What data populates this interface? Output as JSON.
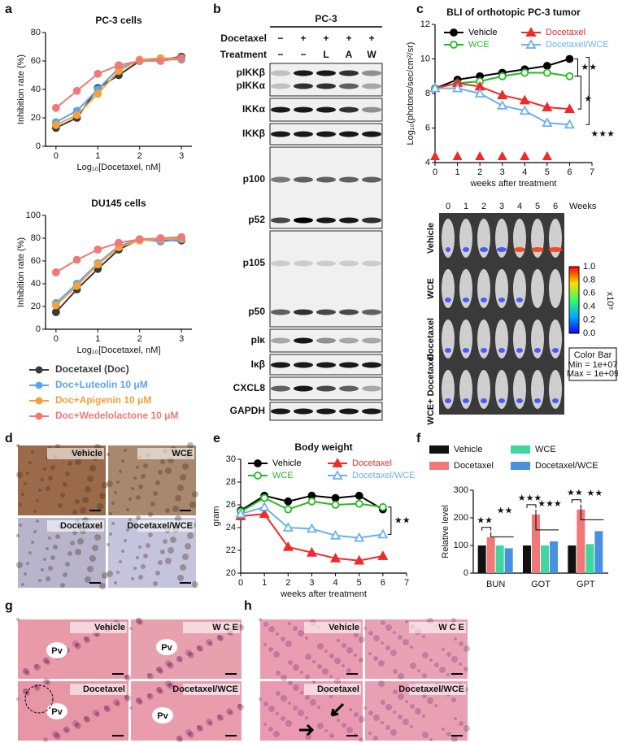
{
  "panel_letters": [
    "a",
    "b",
    "c",
    "d",
    "e",
    "f",
    "g",
    "h"
  ],
  "legend_a": [
    {
      "name": "Docetaxel (Doc)",
      "color": "#3a3a3a"
    },
    {
      "name": "Doc+Luteolin 10 μM",
      "color": "#5aa5e8"
    },
    {
      "name": "Doc+Apigenin 10 μM",
      "color": "#f5a03a"
    },
    {
      "name": "Doc+Wedelolactone 10 μM",
      "color": "#f07878"
    }
  ],
  "chart_data": [
    {
      "type": "line",
      "title": "PC-3 cells",
      "xlabel": "Log₁₀[Docetaxel, nM]",
      "ylabel": "Inhibition rate (%)",
      "x": [
        0,
        0.5,
        1,
        1.5,
        2,
        2.5,
        3
      ],
      "xlim": [
        -0.25,
        3.25
      ],
      "xticks": [
        0,
        1,
        2,
        3
      ],
      "ylim": [
        0,
        80
      ],
      "yticks": [
        0,
        20,
        40,
        60,
        80
      ],
      "series": [
        {
          "color": "#3a3a3a",
          "values": [
            13,
            20,
            41,
            50,
            60,
            61,
            63
          ]
        },
        {
          "color": "#5aa5e8",
          "values": [
            17,
            25,
            40,
            55,
            60,
            61,
            61
          ]
        },
        {
          "color": "#f5a03a",
          "values": [
            15,
            22,
            37,
            53,
            61,
            62,
            62
          ]
        },
        {
          "color": "#f07878",
          "values": [
            27,
            39,
            51,
            57,
            60,
            60,
            62
          ]
        }
      ]
    },
    {
      "type": "line",
      "title": "DU145 cells",
      "xlabel": "Log₁₀[Docetaxel, nM]",
      "ylabel": "Inhibition rate (%)",
      "x": [
        0,
        0.5,
        1,
        1.5,
        2,
        2.5,
        3
      ],
      "xlim": [
        -0.25,
        3.25
      ],
      "xticks": [
        0,
        1,
        2,
        3
      ],
      "ylim": [
        0,
        100
      ],
      "yticks": [
        0,
        20,
        40,
        60,
        80,
        100
      ],
      "series": [
        {
          "color": "#3a3a3a",
          "values": [
            15,
            35,
            53,
            70,
            79,
            78,
            78
          ]
        },
        {
          "color": "#5aa5e8",
          "values": [
            23,
            40,
            58,
            73,
            79,
            77,
            79
          ]
        },
        {
          "color": "#f5a03a",
          "values": [
            21,
            38,
            57,
            72,
            78,
            79,
            80
          ]
        },
        {
          "color": "#f07878",
          "values": [
            50,
            61,
            70,
            76,
            79,
            80,
            81
          ]
        }
      ]
    },
    {
      "type": "line",
      "title": "BLI of orthotopic PC-3 tumor",
      "xlabel": "weeks after treatment",
      "ylabel": "Log₁₀(photons/sec/cm²/sr)",
      "x": [
        0,
        1,
        2,
        3,
        4,
        5,
        6
      ],
      "xlim": [
        0,
        7
      ],
      "xticks": [
        0,
        1,
        2,
        3,
        4,
        5,
        6,
        7
      ],
      "ylim": [
        4,
        12
      ],
      "yticks": [
        4,
        6,
        8,
        10,
        12
      ],
      "series": [
        {
          "name": "Vehicle",
          "color": "#000000",
          "marker": "circle",
          "filled": true,
          "values": [
            8.3,
            8.8,
            9.0,
            9.2,
            9.4,
            9.6,
            10.0
          ]
        },
        {
          "name": "WCE",
          "color": "#22bb22",
          "marker": "circle",
          "filled": false,
          "values": [
            8.3,
            8.6,
            8.7,
            9.0,
            9.2,
            9.2,
            9.0
          ]
        },
        {
          "name": "Docetaxel",
          "color": "#ee2a2a",
          "marker": "triangle",
          "filled": true,
          "values": [
            8.3,
            8.6,
            8.4,
            7.9,
            7.6,
            7.2,
            7.1
          ]
        },
        {
          "name": "Docetaxel/WCE",
          "color": "#6ab0f0",
          "marker": "triangle",
          "filled": false,
          "values": [
            8.3,
            8.3,
            8.0,
            7.3,
            7.0,
            6.3,
            6.2
          ]
        }
      ],
      "treatment_weeks": [
        0,
        1,
        2,
        3,
        4,
        5
      ],
      "treatment_color": "#ee2a2a",
      "annotations": [
        "★★",
        "★",
        "★★★"
      ]
    },
    {
      "type": "line",
      "title": "Body weight",
      "xlabel": "weeks after treatment",
      "ylabel": "gram",
      "x": [
        0,
        1,
        2,
        3,
        4,
        5,
        6
      ],
      "xlim": [
        0,
        7
      ],
      "xticks": [
        0,
        1,
        2,
        3,
        4,
        5,
        6,
        7
      ],
      "ylim": [
        20,
        30
      ],
      "yticks": [
        20,
        22,
        24,
        26,
        28,
        30
      ],
      "series": [
        {
          "name": "Vehicle",
          "color": "#000000",
          "marker": "circle",
          "filled": true,
          "values": [
            25.5,
            26.8,
            26.3,
            26.8,
            26.6,
            26.8,
            25.6
          ]
        },
        {
          "name": "WCE",
          "color": "#22bb22",
          "marker": "circle",
          "filled": false,
          "values": [
            25.4,
            26.6,
            25.6,
            26.3,
            26.0,
            26.1,
            25.8
          ]
        },
        {
          "name": "Docetaxel",
          "color": "#ee2a2a",
          "marker": "triangle",
          "filled": true,
          "values": [
            25.0,
            25.2,
            22.3,
            21.8,
            21.3,
            21.1,
            21.5
          ]
        },
        {
          "name": "Docetaxel/WCE",
          "color": "#6ab0f0",
          "marker": "triangle",
          "filled": false,
          "values": [
            25.2,
            25.8,
            24.0,
            23.9,
            23.3,
            23.1,
            23.4
          ]
        }
      ],
      "annotations": [
        "★★"
      ]
    },
    {
      "type": "bar",
      "ylabel": "Relative level",
      "categories": [
        "BUN",
        "GOT",
        "GPT"
      ],
      "ylim": [
        0,
        300
      ],
      "yticks": [
        0,
        100,
        200,
        300
      ],
      "series": [
        {
          "name": "Vehicle",
          "color": "#111111",
          "values": [
            100,
            100,
            100
          ]
        },
        {
          "name": "Docetaxel",
          "color": "#f07878",
          "values": [
            130,
            212,
            230
          ]
        },
        {
          "name": "WCE",
          "color": "#3fd6a0",
          "values": [
            100,
            100,
            105
          ]
        },
        {
          "name": "Docetaxel/WCE",
          "color": "#4a90e0",
          "values": [
            90,
            115,
            152
          ]
        }
      ],
      "annotations": [
        "★★",
        "★★",
        "★★★",
        "★★★",
        "★★",
        "★★"
      ]
    }
  ],
  "blot": {
    "cell_line": "PC-3",
    "row_labels": [
      "Docetaxel",
      "Treatment"
    ],
    "docetaxel": [
      "−",
      "+",
      "+",
      "+",
      "+"
    ],
    "treatment": [
      "−",
      "−",
      "L",
      "A",
      "W"
    ],
    "bands": [
      "pIKKβ",
      "pIKKα",
      "IKKα",
      "IKKβ",
      "p100",
      "p52",
      "p105",
      "p50",
      "pIκ",
      "Iκβ",
      "CXCL8",
      "GAPDH"
    ]
  },
  "bli": {
    "weeks": [
      "0",
      "1",
      "2",
      "3",
      "4",
      "5",
      "6"
    ],
    "weeks_label": "Weeks",
    "rows": [
      "Vehicle",
      "WCE",
      "Docetaxel",
      "WCE+ Docetaxel"
    ],
    "colorbar": {
      "ticks": [
        "1.0",
        "0.8",
        "0.6",
        "0.4",
        "0.2",
        "0.0"
      ],
      "unit": "x10⁹",
      "title": "Color Bar",
      "min": "Min = 1e+07",
      "max": "Max = 1e+09"
    }
  },
  "ihc": {
    "labels": [
      "Vehicle",
      "WCE",
      "Docetaxel",
      "Docetaxel/WCE"
    ]
  },
  "liver": {
    "labels": [
      "Vehicle",
      "W C E",
      "Docetaxel",
      "Docetaxel/WCE"
    ],
    "vessel": "Pv"
  },
  "kidney": {
    "labels": [
      "Vehicle",
      "W C E",
      "Docetaxel",
      "Docetaxel/WCE"
    ]
  }
}
